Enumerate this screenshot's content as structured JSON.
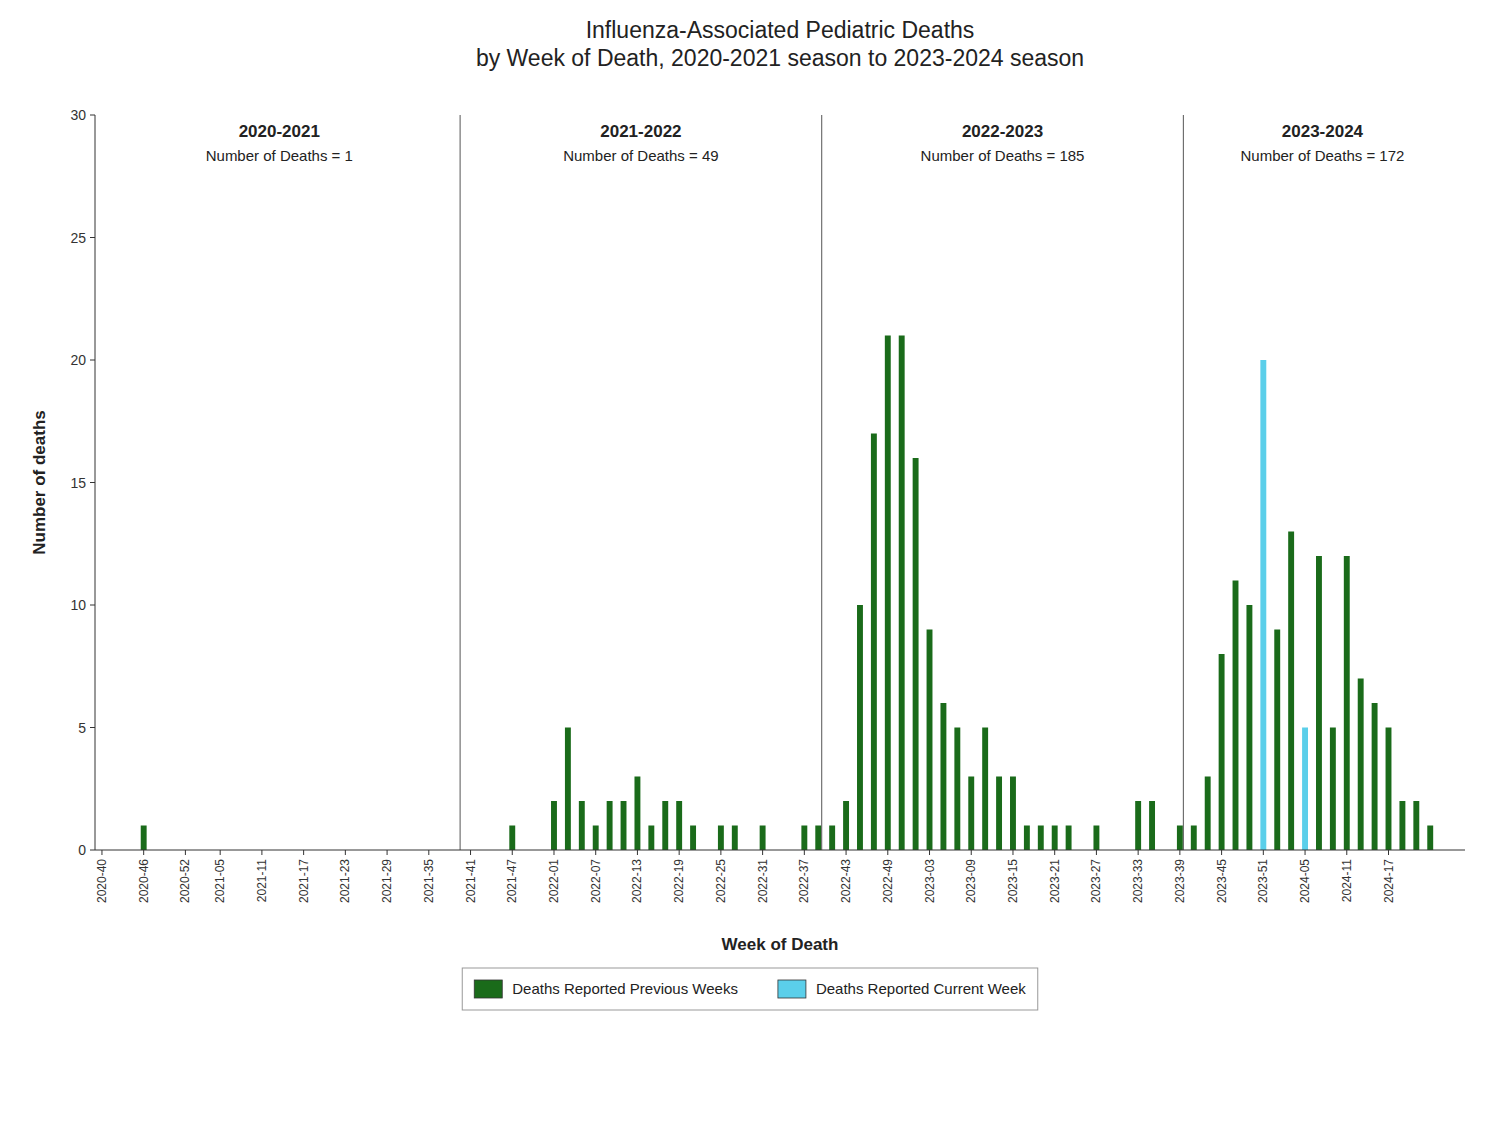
{
  "chart_data": {
    "type": "bar",
    "title": "Influenza-Associated Pediatric Deaths\nby Week of Death, 2020-2021 season to 2023-2024 season",
    "x_label": "Week of Death",
    "y_label": "Number of deaths",
    "categories": [
      "2020-40",
      null,
      null,
      null,
      null,
      null,
      "2020-46",
      null,
      null,
      null,
      null,
      null,
      "2020-52",
      null,
      null,
      null,
      null,
      "2021-05",
      null,
      null,
      null,
      null,
      null,
      "2021-11",
      null,
      null,
      null,
      null,
      null,
      "2021-17",
      null,
      null,
      null,
      null,
      null,
      "2021-23",
      null,
      null,
      null,
      null,
      null,
      "2021-29",
      null,
      null,
      null,
      null,
      null,
      "2021-35",
      null,
      null,
      null,
      null,
      null,
      "2021-41",
      null,
      null,
      null,
      null,
      null,
      "2021-47",
      null,
      null,
      null,
      null,
      null,
      "2022-01",
      null,
      null,
      null,
      null,
      null,
      "2022-07",
      null,
      null,
      null,
      null,
      null,
      "2022-13",
      null,
      null,
      null,
      null,
      null,
      "2022-19",
      null,
      null,
      null,
      null,
      null,
      "2022-25",
      null,
      null,
      null,
      null,
      null,
      "2022-31",
      null,
      null,
      null,
      null,
      null,
      "2022-37",
      null,
      null,
      null,
      null,
      null,
      "2022-43",
      null,
      null,
      null,
      null,
      null,
      "2022-49",
      null,
      null,
      null,
      null,
      null,
      "2023-03",
      null,
      null,
      null,
      null,
      null,
      "2023-09",
      null,
      null,
      null,
      null,
      null,
      "2023-15",
      null,
      null,
      null,
      null,
      null,
      "2023-21",
      null,
      null,
      null,
      null,
      null,
      "2023-27",
      null,
      null,
      null,
      null,
      null,
      "2023-33",
      null,
      null,
      null,
      null,
      null,
      "2023-39",
      null,
      null,
      null,
      null,
      null,
      "2023-45",
      null,
      null,
      null,
      null,
      null,
      "2023-51",
      null,
      null,
      null,
      null,
      null,
      "2024-05",
      null,
      null,
      null,
      null,
      null,
      "2024-11",
      null,
      null,
      null,
      null,
      null,
      "2024-17",
      null,
      null,
      null,
      null,
      null,
      null,
      null,
      null,
      null,
      null
    ],
    "series": [
      {
        "name": "Deaths Reported Previous Weeks",
        "color": "#1a6b1a",
        "values": [
          null,
          null,
          null,
          null,
          null,
          null,
          1,
          null,
          null,
          null,
          null,
          null,
          null,
          null,
          null,
          null,
          null,
          null,
          null,
          null,
          null,
          null,
          null,
          null,
          null,
          null,
          null,
          null,
          null,
          null,
          null,
          null,
          null,
          null,
          null,
          null,
          null,
          null,
          null,
          null,
          null,
          null,
          null,
          null,
          null,
          null,
          null,
          null,
          null,
          null,
          null,
          null,
          null,
          null,
          null,
          null,
          null,
          null,
          null,
          1,
          null,
          null,
          null,
          null,
          null,
          2,
          null,
          5,
          null,
          2,
          null,
          1,
          null,
          2,
          null,
          2,
          null,
          3,
          null,
          1,
          null,
          2,
          null,
          2,
          null,
          1,
          null,
          null,
          null,
          1,
          null,
          1,
          null,
          null,
          null,
          1,
          null,
          null,
          null,
          null,
          null,
          1,
          null,
          1,
          null,
          1,
          null,
          2,
          null,
          10,
          null,
          17,
          null,
          21,
          null,
          21,
          null,
          16,
          null,
          9,
          null,
          6,
          null,
          5,
          null,
          3,
          null,
          5,
          null,
          3,
          null,
          3,
          null,
          1,
          null,
          1,
          null,
          1,
          null,
          1,
          null,
          null,
          null,
          1,
          null,
          null,
          null,
          null,
          null,
          2,
          null,
          2,
          null,
          null,
          null,
          1,
          null,
          1,
          null,
          3,
          null,
          8,
          null,
          11,
          null,
          10,
          null,
          null,
          null,
          9,
          null,
          13,
          null,
          null,
          null,
          12,
          null,
          5,
          null,
          12,
          null,
          7,
          null,
          6,
          null,
          5,
          null,
          2,
          null,
          2,
          null,
          1,
          null,
          null,
          null,
          null
        ]
      },
      {
        "name": "Deaths Reported Current Week",
        "color": "#5bcfea",
        "values": [
          null,
          null,
          null,
          null,
          null,
          null,
          null,
          null,
          null,
          null,
          null,
          null,
          null,
          null,
          null,
          null,
          null,
          null,
          null,
          null,
          null,
          null,
          null,
          null,
          null,
          null,
          null,
          null,
          null,
          null,
          null,
          null,
          null,
          null,
          null,
          null,
          null,
          null,
          null,
          null,
          null,
          null,
          null,
          null,
          null,
          null,
          null,
          null,
          null,
          null,
          null,
          null,
          null,
          null,
          null,
          null,
          null,
          null,
          null,
          null,
          null,
          null,
          null,
          null,
          null,
          null,
          null,
          null,
          null,
          null,
          null,
          null,
          null,
          null,
          null,
          null,
          null,
          null,
          null,
          null,
          null,
          null,
          null,
          null,
          null,
          null,
          null,
          null,
          null,
          null,
          null,
          null,
          null,
          null,
          null,
          null,
          null,
          null,
          null,
          null,
          null,
          null,
          null,
          null,
          null,
          null,
          null,
          null,
          null,
          null,
          null,
          null,
          null,
          null,
          null,
          null,
          null,
          null,
          null,
          null,
          null,
          null,
          null,
          null,
          null,
          null,
          null,
          null,
          null,
          null,
          null,
          null,
          null,
          null,
          null,
          null,
          null,
          null,
          null,
          null,
          null,
          null,
          null,
          null,
          null,
          null,
          null,
          null,
          null,
          null,
          null,
          null,
          null,
          null,
          null,
          null,
          null,
          null,
          null,
          null,
          null,
          null,
          null,
          null,
          null,
          null,
          null,
          20,
          null,
          null,
          null,
          null,
          null,
          5,
          null,
          null,
          null,
          null,
          null,
          null,
          null,
          null,
          null,
          null,
          null,
          null,
          null,
          null,
          null,
          null,
          null,
          null,
          null,
          null,
          null,
          null
        ]
      }
    ],
    "annotations": [
      {
        "label": "2020-2021",
        "text": "Number of Deaths = 1"
      },
      {
        "label": "2021-2022",
        "text": "Number of Deaths = 49"
      },
      {
        "label": "2022-2023",
        "text": "Number of Deaths = 185"
      },
      {
        "label": "2023-2024",
        "text": "Number of Deaths = 172"
      }
    ],
    "ylim": [
      0,
      30
    ],
    "yticks": [
      0,
      5,
      10,
      15,
      20,
      25,
      30
    ],
    "grid": false,
    "legend": "bottom"
  }
}
